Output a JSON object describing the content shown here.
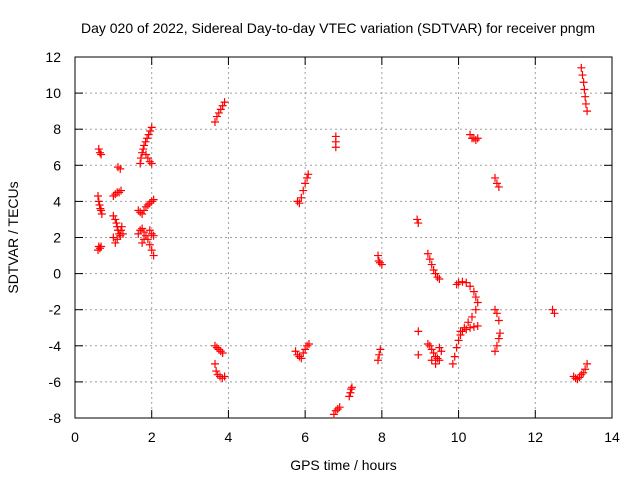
{
  "chart_data": {
    "type": "scatter",
    "title": "Day 020 of 2022, Sidereal Day-to-day VTEC variation (SDTVAR) for receiver pngm",
    "xlabel": "GPS time / hours",
    "ylabel": "SDTVAR / TECUs",
    "xlim": [
      0,
      14
    ],
    "ylim": [
      -8,
      12
    ],
    "xticks": [
      0,
      2,
      4,
      6,
      8,
      10,
      12,
      14
    ],
    "yticks": [
      -8,
      -6,
      -4,
      -2,
      0,
      2,
      4,
      6,
      8,
      10,
      12
    ],
    "grid": true,
    "marker": "+",
    "color": "#ff0000",
    "series": [
      {
        "name": "s1",
        "points": [
          [
            0.62,
            6.9
          ],
          [
            0.65,
            6.7
          ],
          [
            0.68,
            6.6
          ]
        ]
      },
      {
        "name": "s2",
        "points": [
          [
            0.6,
            4.3
          ],
          [
            0.62,
            4.0
          ],
          [
            0.64,
            3.8
          ],
          [
            0.66,
            3.6
          ],
          [
            0.68,
            3.5
          ],
          [
            0.7,
            3.3
          ]
        ]
      },
      {
        "name": "s3",
        "points": [
          [
            0.6,
            1.3
          ],
          [
            0.62,
            1.5
          ],
          [
            0.65,
            1.4
          ],
          [
            0.68,
            1.5
          ]
        ]
      },
      {
        "name": "s4",
        "points": [
          [
            1.0,
            4.3
          ],
          [
            1.05,
            4.4
          ],
          [
            1.1,
            4.5
          ],
          [
            1.15,
            4.5
          ],
          [
            1.2,
            4.6
          ]
        ]
      },
      {
        "name": "s5",
        "points": [
          [
            1.12,
            5.9
          ],
          [
            1.18,
            5.8
          ]
        ]
      },
      {
        "name": "s6",
        "points": [
          [
            1.0,
            3.2
          ],
          [
            1.05,
            3.0
          ],
          [
            1.08,
            2.8
          ],
          [
            1.1,
            2.6
          ],
          [
            1.12,
            2.4
          ],
          [
            1.15,
            2.2
          ],
          [
            1.18,
            2.1
          ],
          [
            1.2,
            2.4
          ],
          [
            1.22,
            2.6
          ],
          [
            1.25,
            2.2
          ],
          [
            1.1,
            1.9
          ],
          [
            1.05,
            1.7
          ],
          [
            1.0,
            2.0
          ]
        ]
      },
      {
        "name": "s7",
        "points": [
          [
            1.7,
            6.1
          ],
          [
            1.72,
            6.4
          ],
          [
            1.75,
            6.7
          ],
          [
            1.78,
            6.9
          ],
          [
            1.8,
            7.1
          ],
          [
            1.84,
            7.3
          ],
          [
            1.88,
            7.5
          ],
          [
            1.92,
            7.7
          ],
          [
            1.96,
            7.9
          ],
          [
            2.0,
            8.1
          ],
          [
            1.85,
            6.6
          ],
          [
            1.9,
            6.4
          ],
          [
            1.95,
            6.2
          ],
          [
            2.0,
            6.1
          ]
        ]
      },
      {
        "name": "s8",
        "points": [
          [
            1.65,
            3.5
          ],
          [
            1.7,
            3.4
          ],
          [
            1.75,
            3.3
          ],
          [
            1.8,
            3.5
          ],
          [
            1.85,
            3.7
          ],
          [
            1.9,
            3.8
          ],
          [
            1.95,
            3.9
          ],
          [
            2.0,
            4.0
          ],
          [
            2.05,
            4.1
          ]
        ]
      },
      {
        "name": "s9",
        "points": [
          [
            1.65,
            2.2
          ],
          [
            1.7,
            2.4
          ],
          [
            1.75,
            2.5
          ],
          [
            1.8,
            2.3
          ],
          [
            1.85,
            2.1
          ],
          [
            1.9,
            1.9
          ],
          [
            1.95,
            1.6
          ],
          [
            2.0,
            1.3
          ],
          [
            2.05,
            1.0
          ],
          [
            1.95,
            2.4
          ],
          [
            2.0,
            2.2
          ],
          [
            2.05,
            2.1
          ],
          [
            1.8,
            1.9
          ],
          [
            1.75,
            1.7
          ]
        ]
      },
      {
        "name": "s10",
        "points": [
          [
            3.65,
            8.4
          ],
          [
            3.7,
            8.7
          ],
          [
            3.75,
            8.9
          ],
          [
            3.8,
            9.1
          ],
          [
            3.85,
            9.3
          ],
          [
            3.9,
            9.5
          ]
        ]
      },
      {
        "name": "s11",
        "points": [
          [
            3.65,
            -4.0
          ],
          [
            3.7,
            -4.1
          ],
          [
            3.75,
            -4.2
          ],
          [
            3.8,
            -4.3
          ],
          [
            3.85,
            -4.4
          ]
        ]
      },
      {
        "name": "s12",
        "points": [
          [
            3.65,
            -5.0
          ],
          [
            3.68,
            -5.4
          ],
          [
            3.72,
            -5.6
          ],
          [
            3.78,
            -5.7
          ],
          [
            3.84,
            -5.8
          ],
          [
            3.9,
            -5.7
          ]
        ]
      },
      {
        "name": "s13",
        "points": [
          [
            5.8,
            4.0
          ],
          [
            5.85,
            3.9
          ],
          [
            5.9,
            4.2
          ],
          [
            5.95,
            4.6
          ],
          [
            6.0,
            5.0
          ],
          [
            6.05,
            5.3
          ],
          [
            6.08,
            5.5
          ]
        ]
      },
      {
        "name": "s14",
        "points": [
          [
            5.75,
            -4.3
          ],
          [
            5.8,
            -4.5
          ],
          [
            5.85,
            -4.6
          ],
          [
            5.9,
            -4.7
          ],
          [
            5.95,
            -4.4
          ],
          [
            6.0,
            -4.2
          ],
          [
            6.05,
            -4.0
          ],
          [
            6.1,
            -3.9
          ]
        ]
      },
      {
        "name": "s15",
        "points": [
          [
            6.8,
            7.6
          ],
          [
            6.8,
            7.3
          ],
          [
            6.8,
            7.0
          ]
        ]
      },
      {
        "name": "s16",
        "points": [
          [
            6.75,
            -7.8
          ],
          [
            6.8,
            -7.6
          ],
          [
            6.85,
            -7.5
          ],
          [
            6.9,
            -7.4
          ]
        ]
      },
      {
        "name": "s17",
        "points": [
          [
            7.15,
            -6.8
          ],
          [
            7.18,
            -6.6
          ],
          [
            7.2,
            -6.4
          ],
          [
            7.22,
            -6.3
          ]
        ]
      },
      {
        "name": "s18",
        "points": [
          [
            7.9,
            1.0
          ],
          [
            7.92,
            0.7
          ],
          [
            7.95,
            0.6
          ],
          [
            8.0,
            0.5
          ]
        ]
      },
      {
        "name": "s19",
        "points": [
          [
            7.9,
            -4.8
          ],
          [
            7.93,
            -4.5
          ],
          [
            7.96,
            -4.2
          ]
        ]
      },
      {
        "name": "s20",
        "points": [
          [
            8.92,
            3.0
          ],
          [
            8.95,
            2.8
          ]
        ]
      },
      {
        "name": "s21",
        "points": [
          [
            8.95,
            -3.2
          ],
          [
            8.95,
            -4.5
          ]
        ]
      },
      {
        "name": "s22",
        "points": [
          [
            9.2,
            1.1
          ],
          [
            9.25,
            0.8
          ],
          [
            9.3,
            0.5
          ],
          [
            9.35,
            0.2
          ],
          [
            9.4,
            0.0
          ],
          [
            9.45,
            -0.2
          ],
          [
            9.5,
            -0.3
          ]
        ]
      },
      {
        "name": "s23",
        "points": [
          [
            9.2,
            -3.9
          ],
          [
            9.25,
            -4.0
          ],
          [
            9.3,
            -4.2
          ],
          [
            9.35,
            -4.4
          ],
          [
            9.4,
            -4.6
          ],
          [
            9.45,
            -4.7
          ],
          [
            9.5,
            -4.8
          ],
          [
            9.3,
            -4.8
          ],
          [
            9.4,
            -5.0
          ],
          [
            9.5,
            -4.1
          ],
          [
            9.55,
            -4.3
          ]
        ]
      },
      {
        "name": "s24",
        "points": [
          [
            9.85,
            -5.0
          ],
          [
            9.9,
            -4.6
          ],
          [
            9.95,
            -4.1
          ],
          [
            10.0,
            -3.7
          ],
          [
            10.05,
            -3.4
          ],
          [
            10.1,
            -3.2
          ],
          [
            10.2,
            -3.1
          ],
          [
            10.3,
            -3.0
          ],
          [
            10.4,
            -2.95
          ],
          [
            10.5,
            -2.9
          ]
        ]
      },
      {
        "name": "s25",
        "points": [
          [
            9.95,
            -0.6
          ],
          [
            10.0,
            -0.5
          ],
          [
            10.1,
            -0.45
          ],
          [
            10.2,
            -0.5
          ],
          [
            10.3,
            -0.7
          ],
          [
            10.4,
            -1.0
          ],
          [
            10.45,
            -1.3
          ],
          [
            10.5,
            -1.6
          ],
          [
            10.45,
            -2.0
          ],
          [
            10.35,
            -2.4
          ],
          [
            10.25,
            -2.7
          ],
          [
            10.15,
            -3.0
          ],
          [
            10.05,
            -3.2
          ]
        ]
      },
      {
        "name": "s26",
        "points": [
          [
            10.3,
            7.7
          ],
          [
            10.35,
            7.5
          ],
          [
            10.4,
            7.5
          ],
          [
            10.45,
            7.4
          ],
          [
            10.5,
            7.5
          ]
        ]
      },
      {
        "name": "s27",
        "points": [
          [
            10.95,
            5.3
          ],
          [
            11.0,
            5.0
          ],
          [
            11.05,
            4.8
          ]
        ]
      },
      {
        "name": "s28",
        "points": [
          [
            10.95,
            -2.0
          ],
          [
            11.0,
            -2.2
          ],
          [
            11.05,
            -2.6
          ]
        ]
      },
      {
        "name": "s29",
        "points": [
          [
            10.95,
            -4.3
          ],
          [
            11.0,
            -4.0
          ],
          [
            11.05,
            -3.6
          ],
          [
            11.08,
            -3.3
          ]
        ]
      },
      {
        "name": "s30",
        "points": [
          [
            12.45,
            -2.0
          ],
          [
            12.5,
            -2.2
          ]
        ]
      },
      {
        "name": "s31",
        "points": [
          [
            13.2,
            11.4
          ],
          [
            13.23,
            11.0
          ],
          [
            13.26,
            10.6
          ],
          [
            13.28,
            10.2
          ],
          [
            13.3,
            9.8
          ],
          [
            13.32,
            9.4
          ],
          [
            13.35,
            9.0
          ]
        ]
      },
      {
        "name": "s32",
        "points": [
          [
            13.0,
            -5.7
          ],
          [
            13.05,
            -5.8
          ],
          [
            13.1,
            -5.85
          ],
          [
            13.15,
            -5.75
          ],
          [
            13.2,
            -5.6
          ],
          [
            13.25,
            -5.5
          ],
          [
            13.3,
            -5.3
          ],
          [
            13.35,
            -5.0
          ]
        ]
      }
    ]
  }
}
